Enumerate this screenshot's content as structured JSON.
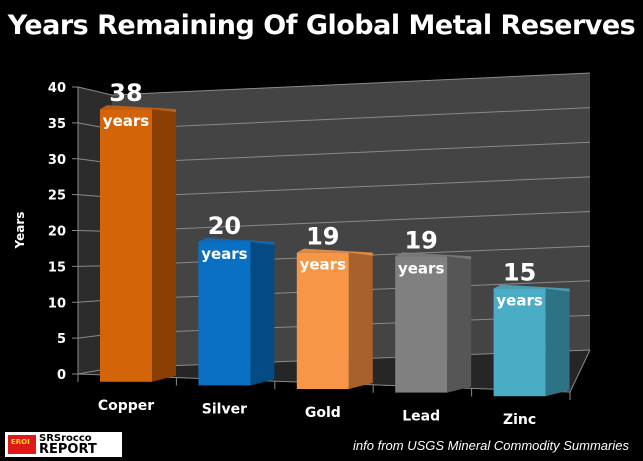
{
  "chart_data": {
    "type": "bar",
    "title": "Years Remaining Of Global Metal Reserves",
    "xlabel": "",
    "ylabel": "Years",
    "ylim": [
      0,
      40
    ],
    "yticks": [
      0,
      5,
      10,
      15,
      20,
      25,
      30,
      35,
      40
    ],
    "grid": true,
    "categories": [
      "Copper",
      "Silver",
      "Gold",
      "Lead",
      "Zinc"
    ],
    "values": [
      38,
      20,
      19,
      19,
      15
    ],
    "data_labels": [
      "38",
      "20",
      "19",
      "19",
      "15"
    ],
    "unit_label": "years",
    "colors": [
      "#d4640a",
      "#0a70c4",
      "#f79646",
      "#808080",
      "#4bacc6"
    ],
    "side_colors": [
      "#8a3f05",
      "#044a84",
      "#a8612a",
      "#565656",
      "#2e7286"
    ]
  },
  "source_note": "info from USGS Mineral Commodity Summaries",
  "logo": {
    "line1": "SRSrocco",
    "line2": "REPORT",
    "badge": "EROI"
  }
}
